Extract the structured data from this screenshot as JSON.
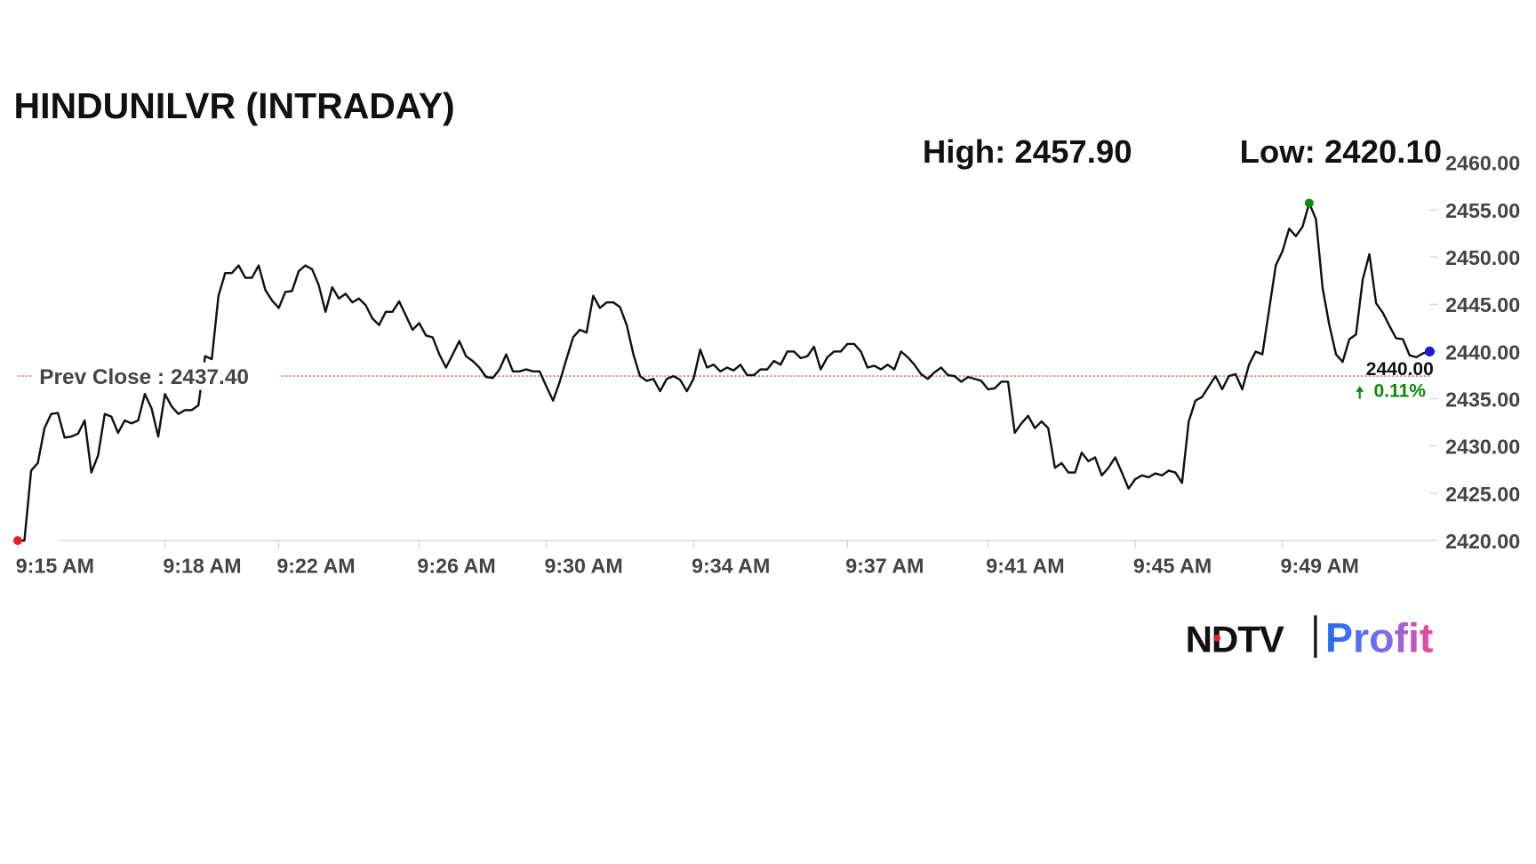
{
  "chart_data": {
    "type": "line",
    "title": "HINDUNILVR (INTRADAY)",
    "high_label": "High: 2457.90",
    "low_label": "Low: 2420.10",
    "last_label": "2440.00",
    "change_label": "0.11%",
    "prev_close": {
      "value": 2437.4,
      "label": "Prev Close : 2437.40"
    },
    "color": "#111111",
    "ylim": [
      2420,
      2460
    ],
    "yticks": [
      {
        "value": 2420,
        "label": "2420.00"
      },
      {
        "value": 2425,
        "label": "2425.00"
      },
      {
        "value": 2430,
        "label": "2430.00"
      },
      {
        "value": 2435,
        "label": "2435.00"
      },
      {
        "value": 2440,
        "label": "2440.00"
      },
      {
        "value": 2445,
        "label": "2445.00"
      },
      {
        "value": 2450,
        "label": "2450.00"
      },
      {
        "value": 2455,
        "label": "2455.00"
      },
      {
        "value": 2460,
        "label": "2460.00"
      }
    ],
    "xlim": [
      0,
      211
    ],
    "xticks": [
      {
        "value": 0,
        "label": "9:15 AM"
      },
      {
        "value": 22,
        "label": "9:18 AM"
      },
      {
        "value": 39,
        "label": "9:22 AM"
      },
      {
        "value": 60,
        "label": "9:26 AM"
      },
      {
        "value": 79,
        "label": "9:30 AM"
      },
      {
        "value": 101,
        "label": "9:34 AM"
      },
      {
        "value": 124,
        "label": "9:37 AM"
      },
      {
        "value": 145,
        "label": "9:41 AM"
      },
      {
        "value": 167,
        "label": "9:45 AM"
      },
      {
        "value": 189,
        "label": "9:49 AM"
      }
    ],
    "values": [
      2420.0,
      2420.0,
      2427.4,
      2428.2,
      2431.9,
      2433.4,
      2433.5,
      2430.9,
      2431.0,
      2431.3,
      2432.7,
      2427.2,
      2429.0,
      2433.4,
      2433.1,
      2431.4,
      2432.7,
      2432.4,
      2432.7,
      2435.5,
      2434.0,
      2431.0,
      2435.5,
      2434.2,
      2433.4,
      2433.8,
      2433.8,
      2434.3,
      2439.5,
      2439.2,
      2445.9,
      2448.3,
      2448.3,
      2449.1,
      2447.8,
      2447.8,
      2449.1,
      2446.5,
      2445.4,
      2444.6,
      2446.3,
      2446.4,
      2448.5,
      2449.1,
      2448.7,
      2447.0,
      2444.2,
      2446.8,
      2445.6,
      2446.1,
      2445.2,
      2445.6,
      2444.9,
      2443.5,
      2442.8,
      2444.2,
      2444.2,
      2445.3,
      2443.8,
      2442.3,
      2443.0,
      2441.7,
      2441.5,
      2439.7,
      2438.3,
      2439.7,
      2441.1,
      2439.5,
      2439.0,
      2438.3,
      2437.3,
      2437.2,
      2438.1,
      2439.7,
      2437.9,
      2437.9,
      2438.1,
      2437.9,
      2437.9,
      2436.3,
      2434.8,
      2436.8,
      2439.2,
      2441.5,
      2442.3,
      2442.0,
      2445.9,
      2444.6,
      2445.2,
      2445.2,
      2444.7,
      2442.8,
      2439.7,
      2437.4,
      2436.9,
      2437.1,
      2435.8,
      2437.1,
      2437.4,
      2437.0,
      2435.8,
      2437.1,
      2440.2,
      2438.3,
      2438.6,
      2437.9,
      2438.3,
      2438.0,
      2438.6,
      2437.5,
      2437.5,
      2438.1,
      2438.1,
      2439.0,
      2438.6,
      2440.0,
      2440.0,
      2439.3,
      2439.5,
      2440.5,
      2438.1,
      2439.4,
      2440.0,
      2440.0,
      2440.8,
      2440.8,
      2440.0,
      2438.3,
      2438.5,
      2438.1,
      2438.6,
      2438.1,
      2440.0,
      2439.4,
      2438.6,
      2437.6,
      2437.1,
      2437.8,
      2438.3,
      2437.5,
      2437.4,
      2436.8,
      2437.3,
      2437.1,
      2436.9,
      2436.0,
      2436.1,
      2436.8,
      2436.8,
      2431.4,
      2432.4,
      2433.2,
      2431.9,
      2432.6,
      2431.9,
      2427.7,
      2428.2,
      2427.2,
      2427.2,
      2429.3,
      2428.4,
      2428.8,
      2426.9,
      2427.7,
      2428.8,
      2427.2,
      2425.5,
      2426.5,
      2426.9,
      2426.7,
      2427.1,
      2426.9,
      2427.4,
      2427.2,
      2426.1,
      2432.6,
      2434.8,
      2435.2,
      2436.3,
      2437.4,
      2436.0,
      2437.4,
      2437.6,
      2436.0,
      2438.6,
      2440.0,
      2439.7,
      2444.4,
      2449.1,
      2450.6,
      2453.0,
      2452.2,
      2453.2,
      2455.7,
      2454.0,
      2446.7,
      2442.8,
      2439.7,
      2438.9,
      2441.3,
      2441.8,
      2447.6,
      2450.3,
      2445.1,
      2444.1,
      2442.7,
      2441.4,
      2441.3,
      2439.6,
      2439.4,
      2439.8,
      2440.0
    ]
  },
  "logo": {
    "brand": "NDTV",
    "product": "Profit"
  }
}
